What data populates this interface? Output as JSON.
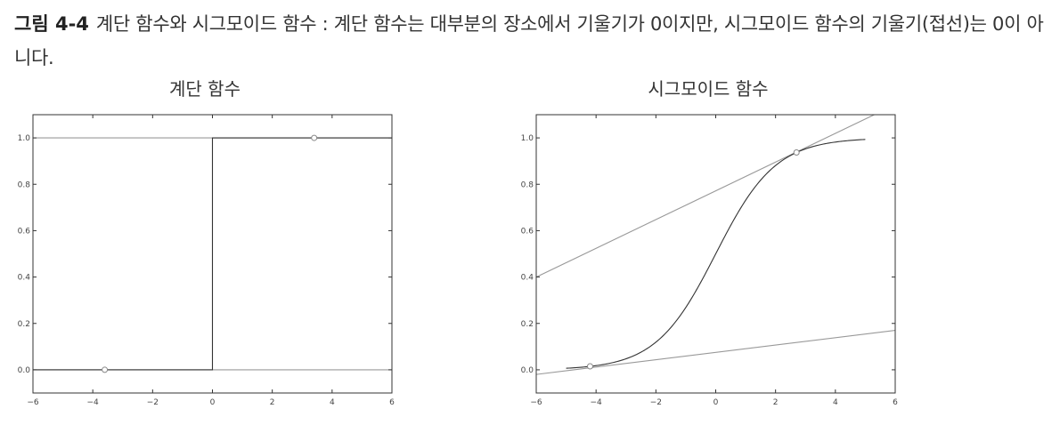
{
  "figure": {
    "label": "그림 4-4",
    "caption": "계단 함수와 시그모이드 함수 : 계단 함수는 대부분의 장소에서 기울기가 0이지만, 시그모이드 함수의 기울기(접선)는 0이 아니다."
  },
  "chart_data": [
    {
      "type": "line",
      "title": "계단 함수",
      "xlim": [
        -6,
        6
      ],
      "ylim": [
        -0.1,
        1.1
      ],
      "xticks": [
        "−6",
        "−4",
        "−2",
        "0",
        "2",
        "4",
        "6"
      ],
      "yticks": [
        "0.0",
        "0.2",
        "0.4",
        "0.6",
        "0.8",
        "1.0"
      ],
      "grid": false,
      "series": [
        {
          "x": [
            -6,
            0,
            0,
            6
          ],
          "y": [
            0,
            0,
            1,
            1
          ],
          "color": "#333333"
        }
      ],
      "tangent_lines": [
        {
          "x": [
            -6,
            6
          ],
          "y": [
            0,
            0
          ],
          "color": "#999999"
        },
        {
          "x": [
            -6,
            6
          ],
          "y": [
            1,
            1
          ],
          "color": "#999999"
        }
      ],
      "points": [
        {
          "x": -3.6,
          "y": 0
        },
        {
          "x": 3.4,
          "y": 1
        }
      ]
    },
    {
      "type": "line",
      "title": "시그모이드 함수",
      "xlim": [
        -6,
        6
      ],
      "ylim": [
        -0.1,
        1.1
      ],
      "xticks": [
        "−6",
        "−4",
        "−2",
        "0",
        "2",
        "4",
        "6"
      ],
      "yticks": [
        "0.0",
        "0.2",
        "0.4",
        "0.6",
        "0.8",
        "1.0"
      ],
      "grid": false,
      "function": "sigmoid",
      "domain": [
        -5,
        5
      ],
      "tangent_lines": [
        {
          "x": [
            -6,
            6
          ],
          "y": [
            -0.02,
            0.17
          ],
          "color": "#999999"
        },
        {
          "x": [
            -6,
            5.3
          ],
          "y": [
            0.4,
            1.1
          ],
          "color": "#999999"
        }
      ],
      "points": [
        {
          "x": -4.2,
          "y": 0.015
        },
        {
          "x": 2.7,
          "y": 0.937
        }
      ]
    }
  ]
}
